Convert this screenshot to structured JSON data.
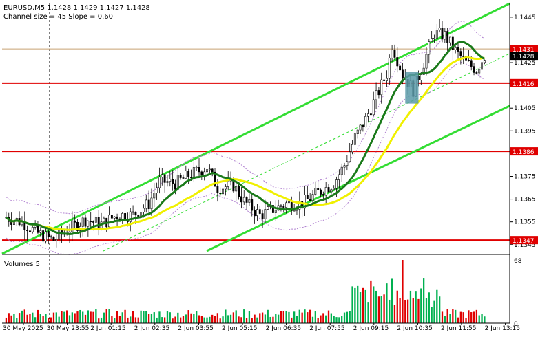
{
  "header": {
    "symbol_line": "EURUSD,M5  1.1428 1.1429 1.1427 1.1428",
    "channel_line": "Channel size = 45 Slope = 0.60"
  },
  "volumes_label": "Volumes 5",
  "colors": {
    "bull": "#00b050",
    "bear": "#e00000",
    "ma_fast": "#1a7a1a",
    "ma_slow": "#f0f000",
    "channel": "#33dd33",
    "level": "#e00000",
    "price_line": "#c8a070",
    "signal_box": "#5a9aa8",
    "axis_text": "#000000"
  },
  "chart_data": [
    {
      "type": "candlestick",
      "title": "EURUSD,M5",
      "ylim": [
        1.1341,
        1.1451
      ],
      "x_tick_labels": [
        "30 May 2025",
        "30 May 23:55",
        "2 Jun 01:15",
        "2 Jun 02:35",
        "2 Jun 03:55",
        "2 Jun 05:15",
        "2 Jun 06:35",
        "2 Jun 07:55",
        "2 Jun 09:15",
        "2 Jun 10:35",
        "2 Jun 11:55",
        "2 Jun 13:15"
      ],
      "y_ticks": [
        "1.1445",
        "1.1425",
        "1.1405",
        "1.1395",
        "1.1375",
        "1.1365",
        "1.1355",
        "1.1345"
      ],
      "levels": [
        {
          "label": "1.1416",
          "value": 1.1416
        },
        {
          "label": "1.1386",
          "value": 1.1386
        },
        {
          "label": "1.1347",
          "value": 1.1347
        }
      ],
      "current_price": {
        "label": "1.1428",
        "value": 1.1428
      },
      "ask_line": {
        "label": "1.1431",
        "value": 1.1431
      },
      "signal_zone": {
        "x_start": 151,
        "x_end": 156,
        "y_low": 1.1407,
        "y_high": 1.1421
      }
    },
    {
      "type": "bar",
      "title": "Volumes 5",
      "ylim": [
        0,
        68
      ],
      "y_ticks": [
        "68",
        "0"
      ]
    }
  ]
}
